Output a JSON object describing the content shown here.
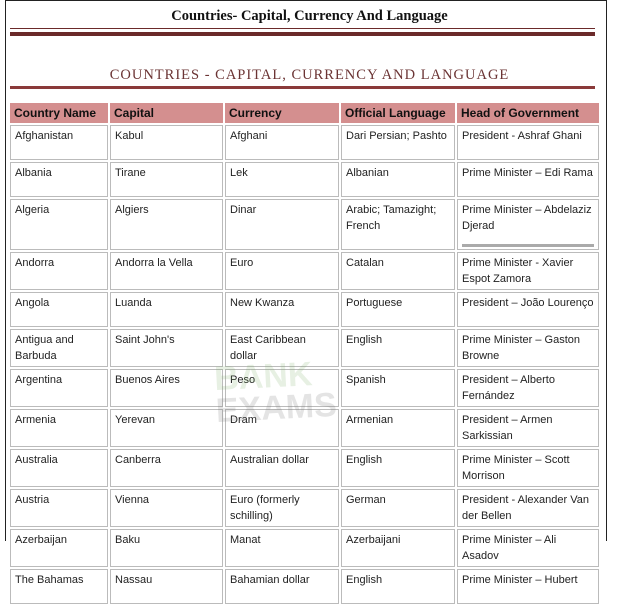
{
  "top_title": "Countries- Capital, Currency And Language",
  "sub_title": "COUNTRIES - CAPITAL, CURRENCY AND LANGUAGE",
  "watermark": {
    "line1": "BANK",
    "line2": "EXAMS"
  },
  "columns": [
    "Country Name",
    "Capital",
    "Currency",
    "Official Language",
    "Head of Government"
  ],
  "rows": [
    [
      "Afghanistan",
      "Kabul",
      "Afghani",
      "Dari Persian; Pashto",
      "President - Ashraf Ghani"
    ],
    [
      "Albania",
      "Tirane",
      "Lek",
      "Albanian",
      "Prime Minister – Edi Rama"
    ],
    [
      "Algeria",
      "Algiers",
      "Dinar",
      "Arabic; Tamazight; French",
      "Prime Minister – Abdelaziz Djerad"
    ],
    [
      "Andorra",
      "Andorra la Vella",
      "Euro",
      "Catalan",
      "Prime Minister - Xavier Espot Zamora"
    ],
    [
      "Angola",
      "Luanda",
      "New Kwanza",
      "Portuguese",
      "President – João Lourenço"
    ],
    [
      "Antigua and Barbuda",
      "Saint John's",
      "East Caribbean dollar",
      "English",
      "Prime Minister – Gaston Browne"
    ],
    [
      "Argentina",
      "Buenos Aires",
      "Peso",
      "Spanish",
      "President – Alberto Fernández"
    ],
    [
      "Armenia",
      "Yerevan",
      "Dram",
      "Armenian",
      "President – Armen Sarkissian"
    ],
    [
      "Australia",
      "Canberra",
      "Australian dollar",
      "English",
      "Prime Minister – Scott Morrison"
    ],
    [
      "Austria",
      "Vienna",
      "Euro (formerly schilling)",
      "German",
      "President - Alexander Van der Bellen"
    ],
    [
      "Azerbaijan",
      "Baku",
      "Manat",
      "Azerbaijani",
      "Prime Minister – Ali Asadov"
    ],
    [
      "The Bahamas",
      "Nassau",
      "Bahamian dollar",
      "English",
      "Prime Minister – Hubert"
    ]
  ]
}
